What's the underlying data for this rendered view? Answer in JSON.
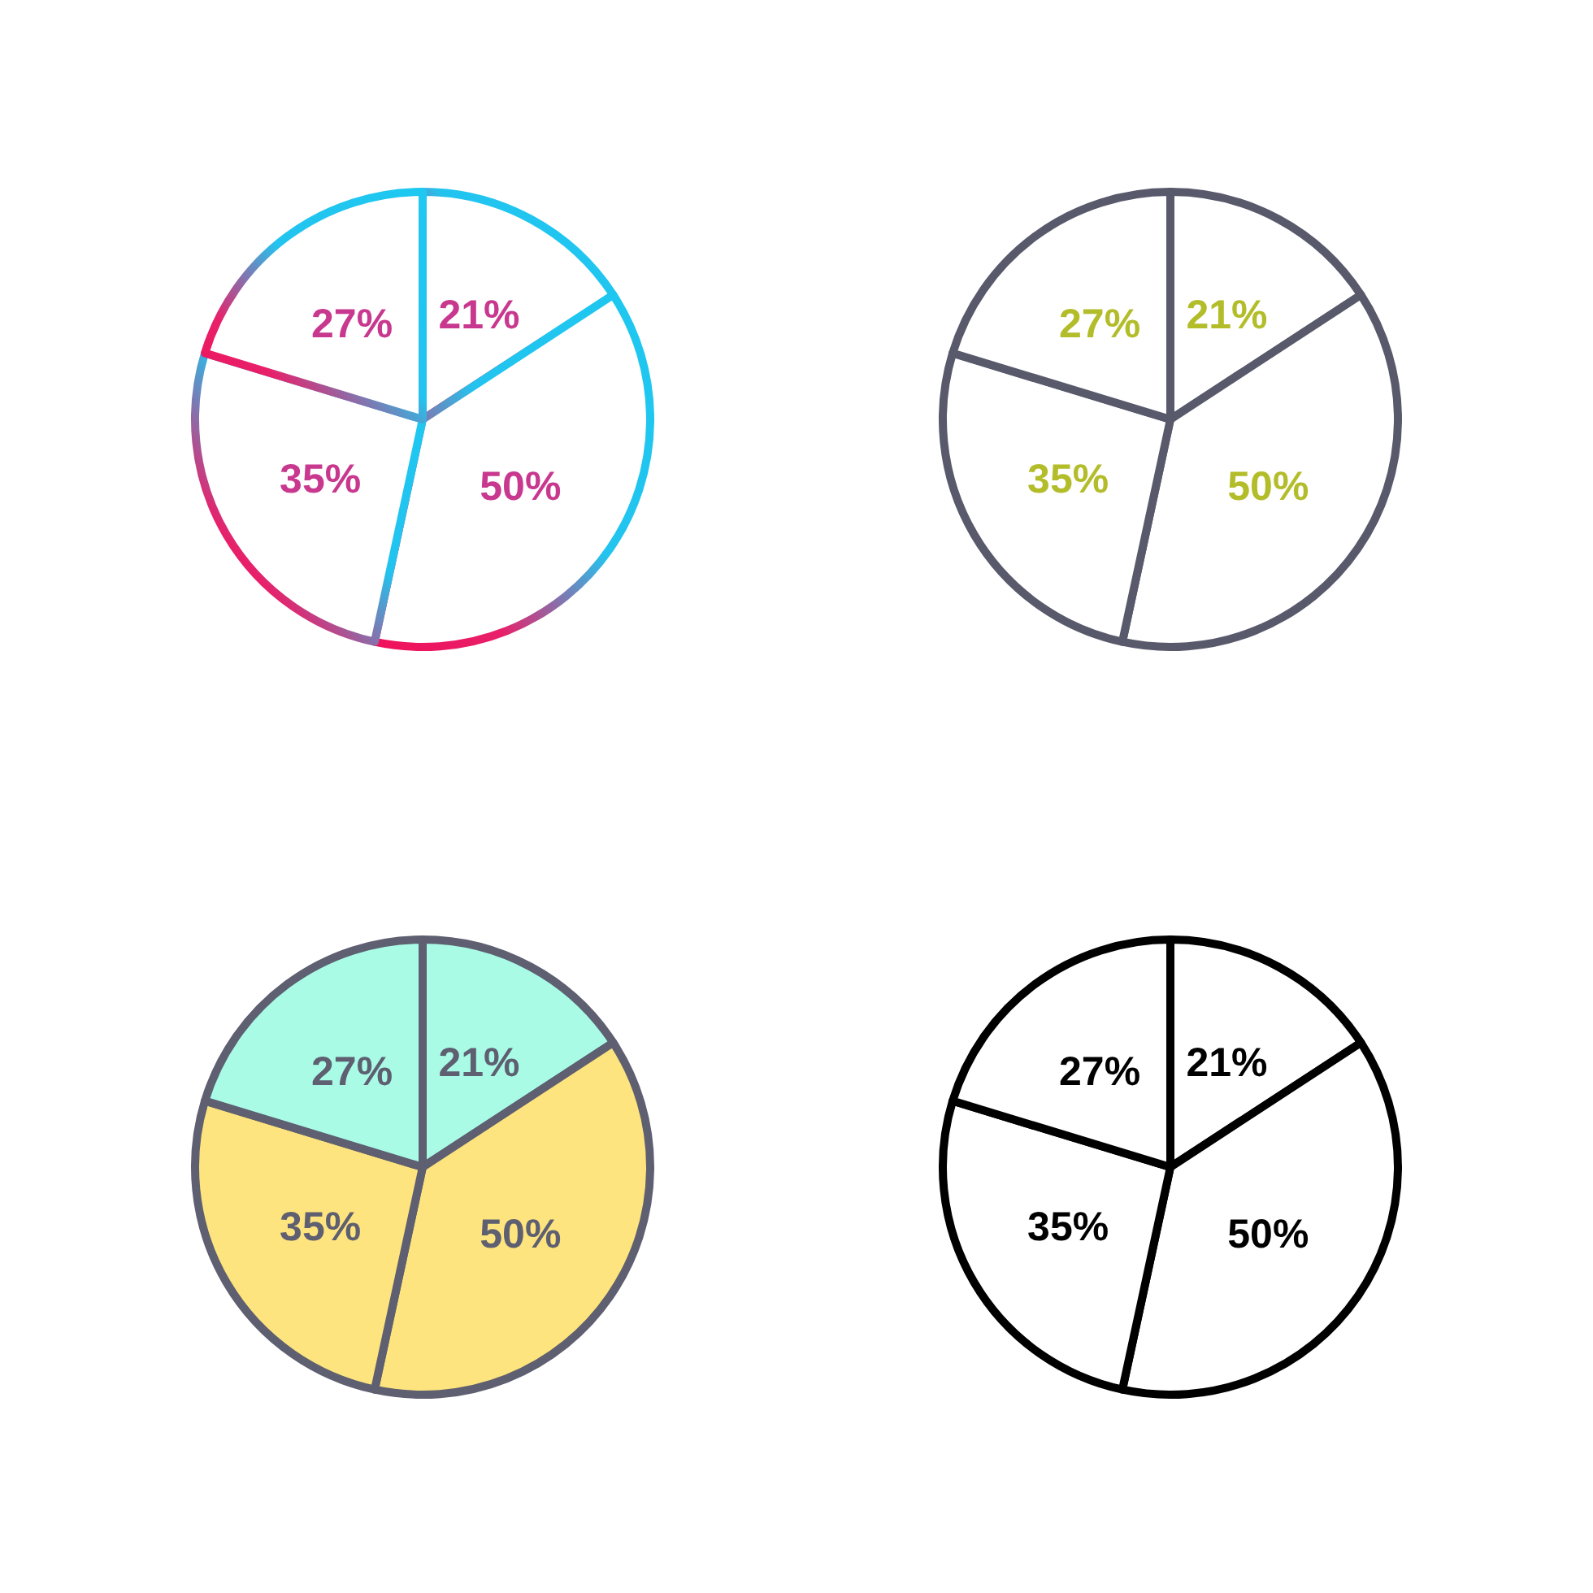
{
  "chart_data": [
    {
      "type": "pie",
      "categories": [
        null,
        null,
        null,
        null
      ],
      "values": [
        21,
        50,
        35,
        27
      ],
      "colors": [
        "#ffffff",
        "#ffffff",
        "#ffffff",
        "#ffffff"
      ],
      "value_labels": [
        "21%",
        "50%",
        "35%",
        "27%"
      ]
    },
    {
      "type": "pie",
      "categories": [
        null,
        null,
        null,
        null
      ],
      "values": [
        21,
        50,
        35,
        27
      ],
      "colors": [
        "#ffffff",
        "#ffffff",
        "#ffffff",
        "#ffffff"
      ],
      "value_labels": [
        "21%",
        "50%",
        "35%",
        "27%"
      ]
    },
    {
      "type": "pie",
      "categories": [
        null,
        null,
        null,
        null
      ],
      "values": [
        21,
        50,
        35,
        27
      ],
      "colors": [
        "#a9fbe6",
        "#fde47e",
        "#fde47e",
        "#a9fbe6"
      ],
      "value_labels": [
        "21%",
        "50%",
        "35%",
        "27%"
      ]
    },
    {
      "type": "pie",
      "categories": [
        null,
        null,
        null,
        null
      ],
      "values": [
        21,
        50,
        35,
        27
      ],
      "colors": [
        "#ffffff",
        "#ffffff",
        "#ffffff",
        "#ffffff"
      ],
      "value_labels": [
        "21%",
        "50%",
        "35%",
        "27%"
      ]
    }
  ]
}
